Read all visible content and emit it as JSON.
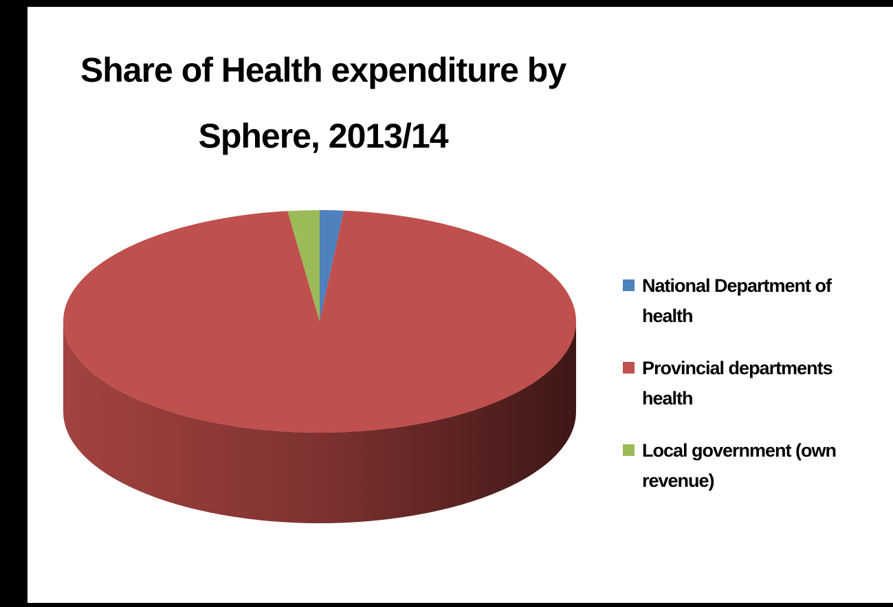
{
  "chart_data": {
    "type": "pie",
    "style": "3d",
    "title_lines": [
      "Share of Health expenditure by",
      "Sphere, 2013/14"
    ],
    "categories": [
      "National Department of health",
      "Provincial departments health",
      "Local government (own revenue)"
    ],
    "legend_lines": [
      [
        "National Department of",
        "health"
      ],
      [
        "Provincial departments",
        "health"
      ],
      [
        "Local government (own",
        "revenue)"
      ]
    ],
    "values": [
      1.5,
      96.5,
      2.0
    ],
    "value_unit": "percent",
    "colors": [
      "#4F81BD",
      "#C0504D",
      "#9BBB59"
    ],
    "legend_position": "right"
  }
}
